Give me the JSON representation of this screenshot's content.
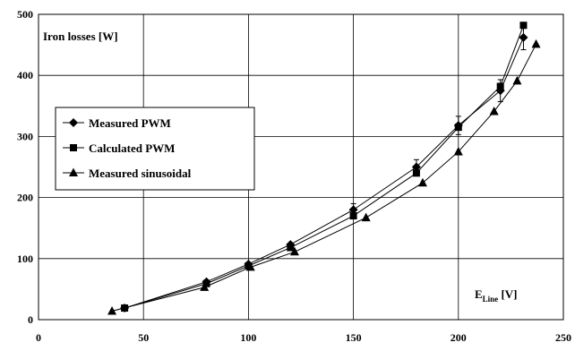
{
  "chart_data": {
    "type": "line",
    "title": "",
    "ylabel": "Iron losses [W]",
    "xlabel_main": "E",
    "xlabel_sub": "Line",
    "xlabel_unit": " [V]",
    "xlim": [
      0,
      250
    ],
    "ylim": [
      0,
      500
    ],
    "xticks": [
      0,
      50,
      100,
      150,
      200,
      250
    ],
    "yticks": [
      0,
      100,
      200,
      300,
      400,
      500
    ],
    "grid": true,
    "legend_position": "left-middle",
    "series": [
      {
        "name": "Measured PWM",
        "marker": "diamond",
        "x": [
          41,
          80,
          100,
          120,
          150,
          180,
          200,
          220,
          231
        ],
        "y": [
          19,
          62,
          91,
          123,
          180,
          250,
          318,
          375,
          462
        ],
        "err": [
          0,
          0,
          0,
          0,
          10,
          12,
          15,
          18,
          20
        ]
      },
      {
        "name": "Calculated PWM",
        "marker": "square",
        "x": [
          41,
          80,
          100,
          120,
          150,
          180,
          200,
          220,
          231
        ],
        "y": [
          19,
          59,
          88,
          118,
          170,
          240,
          315,
          382,
          482
        ]
      },
      {
        "name": "Measured sinusoidal",
        "marker": "triangle",
        "x": [
          35,
          79,
          101,
          122,
          156,
          183,
          200,
          217,
          228,
          237
        ],
        "y": [
          14,
          53,
          86,
          111,
          167,
          224,
          275,
          341,
          391,
          451
        ]
      }
    ]
  }
}
